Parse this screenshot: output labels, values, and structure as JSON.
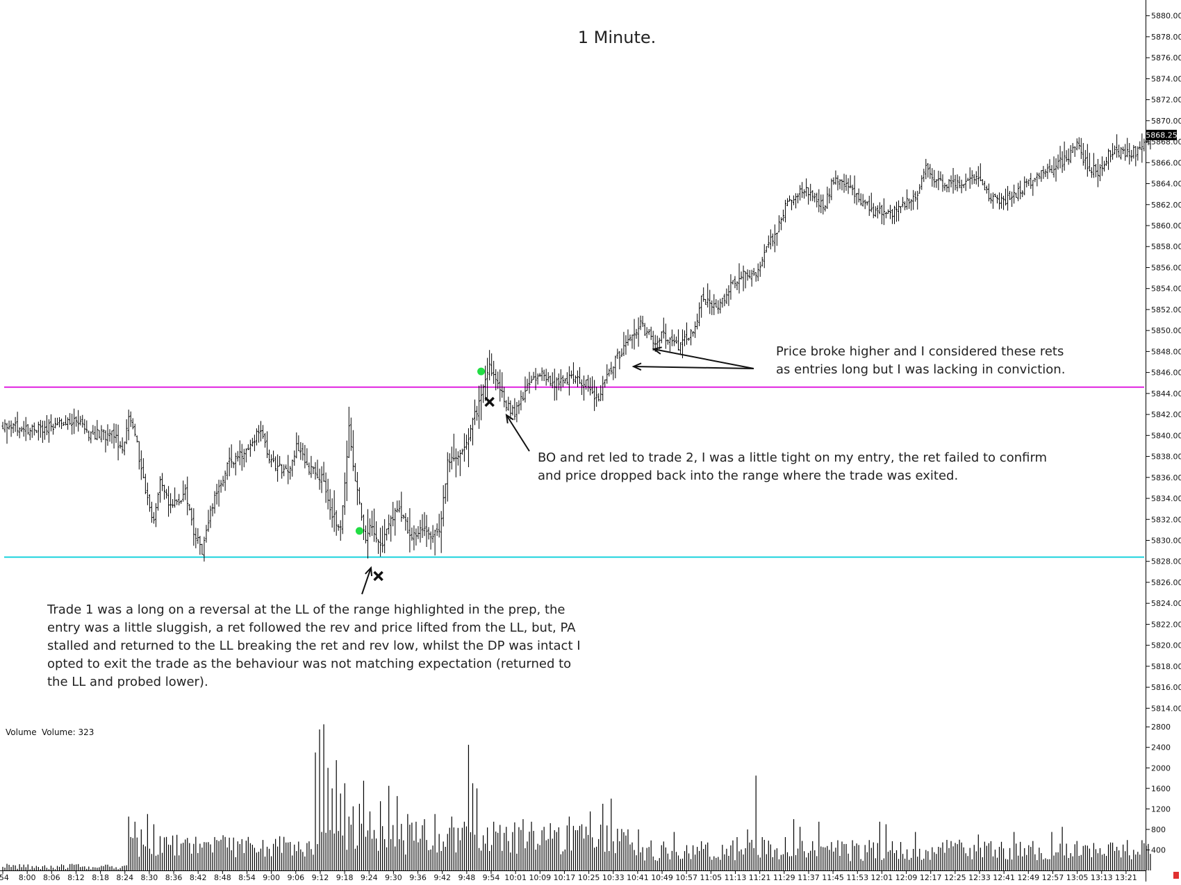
{
  "chart_data": {
    "type": "ohlc",
    "title": "1 Minute.",
    "instrument_last_price": "5868.25",
    "ylim": [
      5812.7,
      5881.5
    ],
    "y_ticks": [
      5814,
      5816,
      5818,
      5820,
      5822,
      5824,
      5826,
      5828,
      5830,
      5832,
      5834,
      5836,
      5838,
      5840,
      5842,
      5844,
      5846,
      5848,
      5850,
      5852,
      5854,
      5856,
      5858,
      5860,
      5862,
      5864,
      5866,
      5868,
      5870,
      5872,
      5874,
      5876,
      5878,
      5880
    ],
    "y_tick_labels": [
      "5814.00",
      "5816.00",
      "5818.00",
      "5820.00",
      "5822.00",
      "5824.00",
      "5826.00",
      "5828.00",
      "5830.00",
      "5832.00",
      "5834.00",
      "5836.00",
      "5838.00",
      "5840.00",
      "5842.00",
      "5844.00",
      "5846.00",
      "5848.00",
      "5850.00",
      "5852.00",
      "5854.00",
      "5856.00",
      "5858.00",
      "5860.00",
      "5862.00",
      "5864.00",
      "5866.00",
      "5868.00",
      "5870.00",
      "5872.00",
      "5874.00",
      "5876.00",
      "5878.00",
      "5880.00"
    ],
    "x_tick_labels": [
      ":54",
      "8:00",
      "8:06",
      "8:12",
      "8:18",
      "8:24",
      "8:30",
      "8:36",
      "8:42",
      "8:48",
      "8:54",
      "9:00",
      "9:06",
      "9:12",
      "9:18",
      "9:24",
      "9:30",
      "9:36",
      "9:42",
      "9:48",
      "9:54",
      "10:01",
      "10:09",
      "10:17",
      "10:25",
      "10:33",
      "10:41",
      "10:49",
      "10:57",
      "11:05",
      "11:13",
      "11:21",
      "11:29",
      "11:37",
      "11:45",
      "11:53",
      "12:01",
      "12:09",
      "12:17",
      "12:25",
      "12:33",
      "12:41",
      "12:49",
      "12:57",
      "13:05",
      "13:13",
      "13:21"
    ],
    "price_path_keyframes": [
      [
        0,
        5841.0
      ],
      [
        14,
        5840.5
      ],
      [
        36,
        5841.5
      ],
      [
        40,
        5840.2
      ],
      [
        53,
        5840.0
      ],
      [
        57,
        5838.5
      ],
      [
        60,
        5842.0
      ],
      [
        63,
        5840.0
      ],
      [
        69,
        5834.0
      ],
      [
        72,
        5831.5
      ],
      [
        75,
        5836.0
      ],
      [
        80,
        5833.0
      ],
      [
        87,
        5834.5
      ],
      [
        91,
        5831.0
      ],
      [
        95,
        5829.0
      ],
      [
        99,
        5833.0
      ],
      [
        103,
        5835.0
      ],
      [
        108,
        5837.5
      ],
      [
        117,
        5838.5
      ],
      [
        122,
        5840.5
      ],
      [
        128,
        5837.5
      ],
      [
        136,
        5836.5
      ],
      [
        140,
        5839.0
      ],
      [
        145,
        5837.0
      ],
      [
        152,
        5836.0
      ],
      [
        156,
        5833.0
      ],
      [
        161,
        5831.0
      ],
      [
        165,
        5840.5
      ],
      [
        168,
        5836.0
      ],
      [
        173,
        5830.0
      ],
      [
        175,
        5831.5
      ],
      [
        180,
        5829.5
      ],
      [
        188,
        5833.0
      ],
      [
        195,
        5830.5
      ],
      [
        199,
        5831.0
      ],
      [
        208,
        5830.5
      ],
      [
        212,
        5837.5
      ],
      [
        220,
        5838.5
      ],
      [
        226,
        5842.5
      ],
      [
        230,
        5845.0
      ],
      [
        232,
        5846.5
      ],
      [
        236,
        5845.0
      ],
      [
        240,
        5843.0
      ],
      [
        244,
        5842.0
      ],
      [
        250,
        5844.5
      ],
      [
        256,
        5846.0
      ],
      [
        262,
        5845.0
      ],
      [
        270,
        5845.5
      ],
      [
        278,
        5845.0
      ],
      [
        283,
        5843.5
      ],
      [
        287,
        5845.0
      ],
      [
        293,
        5847.5
      ],
      [
        298,
        5849.0
      ],
      [
        304,
        5850.5
      ],
      [
        310,
        5849.0
      ],
      [
        315,
        5849.5
      ],
      [
        322,
        5848.5
      ],
      [
        330,
        5850.0
      ],
      [
        333,
        5853.0
      ],
      [
        340,
        5852.0
      ],
      [
        348,
        5854.5
      ],
      [
        353,
        5855.5
      ],
      [
        360,
        5855.5
      ],
      [
        363,
        5857.5
      ],
      [
        370,
        5860.0
      ],
      [
        374,
        5862.5
      ],
      [
        383,
        5863.5
      ],
      [
        388,
        5862.0
      ],
      [
        392,
        5862.0
      ],
      [
        396,
        5864.5
      ],
      [
        404,
        5863.5
      ],
      [
        414,
        5861.5
      ],
      [
        422,
        5861.0
      ],
      [
        430,
        5862.0
      ],
      [
        437,
        5863.5
      ],
      [
        440,
        5865.5
      ],
      [
        445,
        5864.0
      ],
      [
        454,
        5864.0
      ],
      [
        464,
        5864.5
      ],
      [
        472,
        5862.5
      ],
      [
        480,
        5862.5
      ],
      [
        488,
        5864.0
      ],
      [
        500,
        5865.5
      ],
      [
        508,
        5866.5
      ],
      [
        512,
        5868.0
      ],
      [
        516,
        5866.0
      ],
      [
        522,
        5865.0
      ],
      [
        528,
        5867.0
      ],
      [
        540,
        5867.0
      ],
      [
        547,
        5868.25
      ]
    ],
    "volume": {
      "label": "Volume",
      "value_label": "Volume: 323",
      "ylim": [
        0,
        3100
      ],
      "y_ticks": [
        400,
        800,
        1200,
        1600,
        2000,
        2400,
        2800
      ],
      "y_tick_labels": [
        "400",
        "800",
        "1200",
        "1600",
        "2000",
        "2400",
        "2800"
      ],
      "spikes": [
        [
          60,
          1050
        ],
        [
          63,
          950
        ],
        [
          66,
          800
        ],
        [
          69,
          1100
        ],
        [
          72,
          900
        ],
        [
          149,
          2300
        ],
        [
          151,
          2750
        ],
        [
          153,
          2850
        ],
        [
          155,
          2000
        ],
        [
          157,
          1600
        ],
        [
          159,
          2150
        ],
        [
          161,
          1500
        ],
        [
          163,
          1700
        ],
        [
          165,
          1050
        ],
        [
          167,
          1250
        ],
        [
          170,
          1300
        ],
        [
          172,
          1750
        ],
        [
          175,
          1150
        ],
        [
          180,
          1350
        ],
        [
          184,
          1650
        ],
        [
          188,
          1450
        ],
        [
          193,
          1100
        ],
        [
          197,
          950
        ],
        [
          201,
          1000
        ],
        [
          206,
          1100
        ],
        [
          214,
          1050
        ],
        [
          220,
          950
        ],
        [
          222,
          2450
        ],
        [
          224,
          1700
        ],
        [
          226,
          1600
        ],
        [
          234,
          950
        ],
        [
          240,
          850
        ],
        [
          248,
          1000
        ],
        [
          252,
          950
        ],
        [
          258,
          850
        ],
        [
          264,
          750
        ],
        [
          270,
          1050
        ],
        [
          276,
          900
        ],
        [
          280,
          1150
        ],
        [
          286,
          1300
        ],
        [
          290,
          1400
        ],
        [
          303,
          800
        ],
        [
          320,
          750
        ],
        [
          350,
          650
        ],
        [
          355,
          800
        ],
        [
          359,
          1850
        ],
        [
          362,
          650
        ],
        [
          373,
          650
        ],
        [
          377,
          1000
        ],
        [
          380,
          850
        ],
        [
          389,
          950
        ],
        [
          418,
          950
        ],
        [
          421,
          900
        ],
        [
          435,
          750
        ],
        [
          465,
          700
        ],
        [
          482,
          750
        ],
        [
          500,
          750
        ],
        [
          505,
          850
        ]
      ]
    },
    "levels": [
      {
        "name": "range-high",
        "value": 5844.6,
        "color": "#e020e0"
      },
      {
        "name": "range-low",
        "value": 5828.4,
        "color": "#19d3dd"
      }
    ],
    "markers": [
      {
        "type": "entry",
        "bar": 170,
        "price": 5830.9,
        "color": "#22dd44"
      },
      {
        "type": "exit",
        "bar": 179,
        "price": 5826.6,
        "color": "#111111"
      },
      {
        "type": "entry",
        "bar": 228,
        "price": 5846.1,
        "color": "#22dd44"
      },
      {
        "type": "exit",
        "bar": 232,
        "price": 5843.2,
        "color": "#111111"
      }
    ],
    "annotations": [
      {
        "text": "Trade 1 was a long on a reversal at the LL of the range highlighted in the prep, the entry was a little sluggish, a ret followed the rev and price lifted from the LL, but, PA stalled and returned to the LL breaking the ret and rev low, whilst the DP was intact I opted to exit the trade as the behaviour was not matching expectation (returned to the LL and probed lower)."
      },
      {
        "text": "BO and ret led to trade 2, I was a little tight on my entry, the ret failed to confirm and price dropped back into the range where the trade was exited."
      },
      {
        "text": "Price broke higher and I considered these rets as entries long but I was lacking in conviction."
      }
    ]
  }
}
